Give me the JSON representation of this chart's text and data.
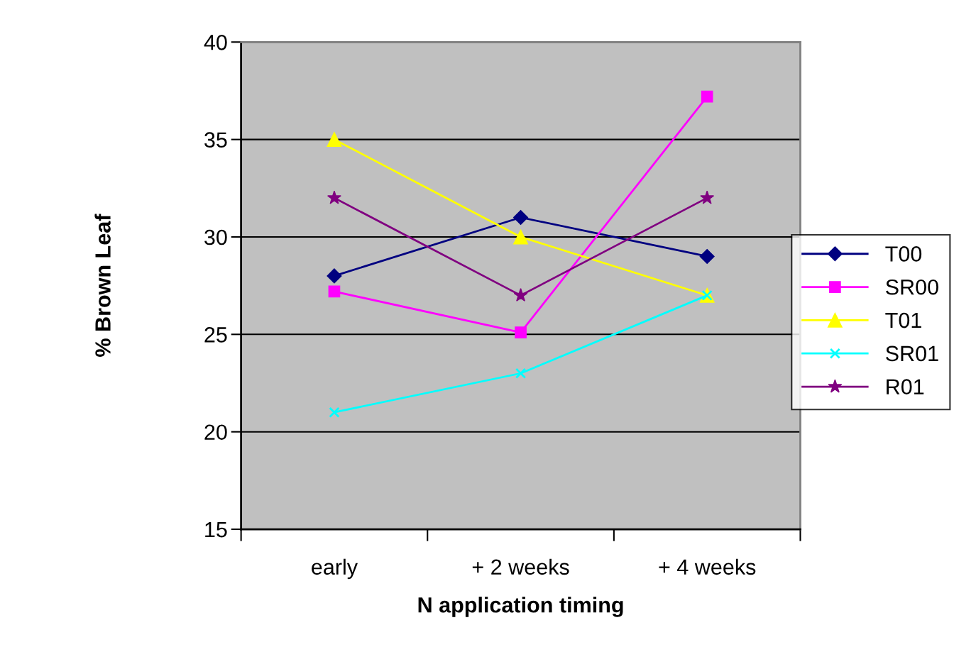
{
  "chart_data": {
    "type": "line",
    "xlabel": "N application timing",
    "ylabel": "% Brown Leaf",
    "categories": [
      "early",
      "+ 2 weeks",
      "+ 4 weeks"
    ],
    "series": [
      {
        "name": "T00",
        "color": "#000080",
        "marker": "diamond",
        "values": [
          28,
          31,
          29
        ]
      },
      {
        "name": "SR00",
        "color": "#ff00ff",
        "marker": "square",
        "values": [
          27.2,
          25.1,
          37.2
        ]
      },
      {
        "name": "T01",
        "color": "#ffff00",
        "marker": "triangle",
        "values": [
          35,
          30,
          27
        ]
      },
      {
        "name": "SR01",
        "color": "#00ffff",
        "marker": "cross",
        "values": [
          21,
          23,
          27
        ]
      },
      {
        "name": "R01",
        "color": "#800080",
        "marker": "star",
        "values": [
          32,
          27,
          32
        ]
      }
    ],
    "ylim": [
      15,
      40
    ],
    "yticks": [
      15,
      20,
      25,
      30,
      35,
      40
    ],
    "grid": "y",
    "legend": "right"
  }
}
